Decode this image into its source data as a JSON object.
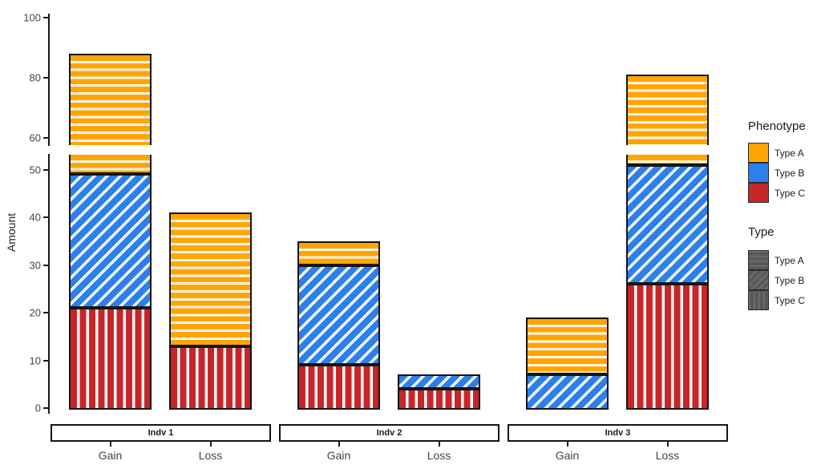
{
  "chart_data": {
    "type": "bar",
    "stacked": true,
    "title": "",
    "xlabel": "",
    "y_axis": {
      "label": "Amount",
      "lower_ticks": [
        0,
        10,
        20,
        30,
        40,
        50
      ],
      "upper_ticks": [
        60,
        80,
        100
      ],
      "break_range": [
        53,
        58
      ],
      "max": 100
    },
    "categories": [
      "Gain",
      "Loss"
    ],
    "stack_order_bottom_to_top": [
      "Type C",
      "Type B",
      "Type A"
    ],
    "colors": {
      "Type A": "#FFA502",
      "Type B": "#2B80EB",
      "Type C": "#C62629"
    },
    "patterns": {
      "Type A": "horizontal",
      "Type B": "diagonal",
      "Type C": "vertical"
    },
    "facets": [
      {
        "label": "Indv 1",
        "bars": [
          {
            "category": "Gain",
            "segments": [
              {
                "type": "Type C",
                "value": 21
              },
              {
                "type": "Type B",
                "value": 28
              },
              {
                "type": "Type A",
                "value": 39
              }
            ]
          },
          {
            "category": "Loss",
            "segments": [
              {
                "type": "Type C",
                "value": 13
              },
              {
                "type": "Type A",
                "value": 28
              }
            ]
          }
        ]
      },
      {
        "label": "Indv 2",
        "bars": [
          {
            "category": "Gain",
            "segments": [
              {
                "type": "Type C",
                "value": 9
              },
              {
                "type": "Type B",
                "value": 21
              },
              {
                "type": "Type A",
                "value": 5
              }
            ]
          },
          {
            "category": "Loss",
            "segments": [
              {
                "type": "Type C",
                "value": 4
              },
              {
                "type": "Type B",
                "value": 3
              }
            ]
          }
        ]
      },
      {
        "label": "Indv 3",
        "bars": [
          {
            "category": "Gain",
            "segments": [
              {
                "type": "Type B",
                "value": 7
              },
              {
                "type": "Type A",
                "value": 12
              }
            ]
          },
          {
            "category": "Loss",
            "segments": [
              {
                "type": "Type C",
                "value": 26
              },
              {
                "type": "Type B",
                "value": 25
              },
              {
                "type": "Type A",
                "value": 30
              }
            ]
          }
        ]
      }
    ],
    "legends": [
      {
        "title": "Phenotype",
        "entries": [
          {
            "label": "Type A",
            "color": "#FFA502"
          },
          {
            "label": "Type B",
            "color": "#2B80EB"
          },
          {
            "label": "Type C",
            "color": "#C62629"
          }
        ]
      },
      {
        "title": "Type",
        "key_color": "#595959",
        "entries": [
          {
            "label": "Type A",
            "pattern": "horizontal"
          },
          {
            "label": "Type B",
            "pattern": "diagonal"
          },
          {
            "label": "Type C",
            "pattern": "vertical"
          }
        ]
      }
    ]
  }
}
